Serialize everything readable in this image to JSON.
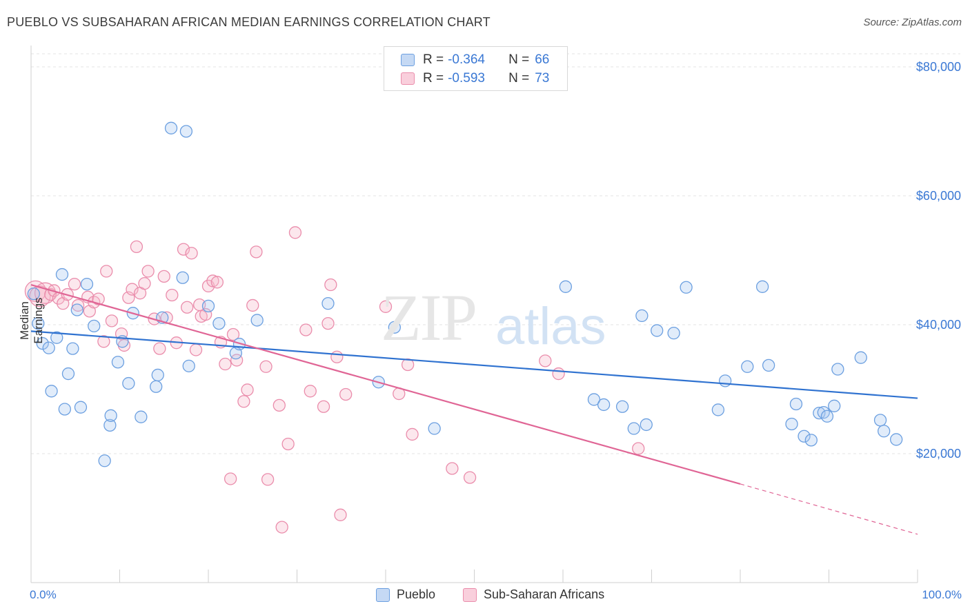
{
  "title": "PUEBLO VS SUBSAHARAN AFRICAN MEDIAN EARNINGS CORRELATION CHART",
  "source": "Source: ZipAtlas.com",
  "watermark": {
    "part1": "ZIP",
    "part2": "atlas"
  },
  "legend": {
    "rows": [
      {
        "r_label": "R =",
        "r_value": "-0.364",
        "n_label": "N =",
        "n_value": "66"
      },
      {
        "r_label": "R =",
        "r_value": "-0.593",
        "n_label": "N =",
        "n_value": "73"
      }
    ]
  },
  "bottom_legend": {
    "series1": "Pueblo",
    "series2": "Sub-Saharan Africans"
  },
  "colors": {
    "blue_fill": "#a9c8f0",
    "blue_stroke": "#6b9fe0",
    "blue_line": "#2f72d0",
    "pink_fill": "#f6b9cb",
    "pink_stroke": "#ea8cab",
    "pink_line": "#e06595",
    "accent_text": "#3a78d4",
    "grid": "#e3e3e3"
  },
  "chart_data": {
    "type": "scatter",
    "title": "PUEBLO VS SUBSAHARAN AFRICAN MEDIAN EARNINGS CORRELATION CHART",
    "xlabel": "",
    "ylabel": "Median Earnings",
    "xlim": [
      0,
      100
    ],
    "ylim": [
      0,
      82000
    ],
    "x_tick_labels": [
      "0.0%",
      "100.0%"
    ],
    "y_ticks": [
      20000,
      40000,
      60000,
      80000
    ],
    "y_tick_labels": [
      "$20,000",
      "$40,000",
      "$60,000",
      "$80,000"
    ],
    "grid": true,
    "legend_position": "top-center",
    "series": [
      {
        "name": "Pueblo",
        "color": "#6b9fe0",
        "r": -0.364,
        "n": 66,
        "trend": {
          "x": [
            0,
            100
          ],
          "y": [
            39000,
            28600
          ]
        },
        "points": [
          [
            0.3,
            44800
          ],
          [
            0.8,
            40200
          ],
          [
            1.3,
            37100
          ],
          [
            2.0,
            36400
          ],
          [
            2.3,
            29700
          ],
          [
            2.9,
            38000
          ],
          [
            3.5,
            47800
          ],
          [
            3.8,
            26900
          ],
          [
            4.2,
            32400
          ],
          [
            4.7,
            36300
          ],
          [
            5.2,
            42300
          ],
          [
            5.6,
            27200
          ],
          [
            6.3,
            46300
          ],
          [
            7.1,
            39800
          ],
          [
            8.3,
            18900
          ],
          [
            8.9,
            24400
          ],
          [
            9.0,
            25900
          ],
          [
            9.8,
            34200
          ],
          [
            10.3,
            37400
          ],
          [
            11.0,
            30900
          ],
          [
            11.5,
            41800
          ],
          [
            12.4,
            25700
          ],
          [
            14.1,
            30400
          ],
          [
            14.3,
            32200
          ],
          [
            14.8,
            41100
          ],
          [
            15.8,
            70500
          ],
          [
            17.1,
            47300
          ],
          [
            17.5,
            70000
          ],
          [
            17.8,
            33600
          ],
          [
            20.0,
            42900
          ],
          [
            21.2,
            40200
          ],
          [
            23.1,
            35600
          ],
          [
            23.5,
            37000
          ],
          [
            25.5,
            40700
          ],
          [
            33.5,
            43300
          ],
          [
            39.2,
            31100
          ],
          [
            41.0,
            39600
          ],
          [
            45.5,
            23900
          ],
          [
            60.3,
            45900
          ],
          [
            63.5,
            28400
          ],
          [
            64.6,
            27600
          ],
          [
            66.7,
            27300
          ],
          [
            68.0,
            23900
          ],
          [
            68.9,
            41400
          ],
          [
            69.4,
            24500
          ],
          [
            70.6,
            39100
          ],
          [
            72.5,
            38700
          ],
          [
            73.9,
            45800
          ],
          [
            77.5,
            26800
          ],
          [
            78.3,
            31300
          ],
          [
            80.8,
            33500
          ],
          [
            82.5,
            45900
          ],
          [
            83.2,
            33700
          ],
          [
            85.8,
            24600
          ],
          [
            86.3,
            27700
          ],
          [
            87.2,
            22700
          ],
          [
            88.0,
            22100
          ],
          [
            88.9,
            26300
          ],
          [
            89.4,
            26400
          ],
          [
            89.8,
            25800
          ],
          [
            90.6,
            27400
          ],
          [
            91.0,
            33100
          ],
          [
            93.6,
            34900
          ],
          [
            95.8,
            25200
          ],
          [
            96.2,
            23500
          ],
          [
            97.6,
            22200
          ]
        ]
      },
      {
        "name": "Sub-Saharan Africans",
        "color": "#ea8cab",
        "r": -0.593,
        "n": 73,
        "trend": {
          "x": [
            0,
            80
          ],
          "y": [
            46200,
            15300
          ]
        },
        "trend_dashed": {
          "x": [
            80,
            100
          ],
          "y": [
            15300,
            7500
          ]
        },
        "points": [
          [
            0.5,
            45200
          ],
          [
            1.0,
            44400
          ],
          [
            1.6,
            44900
          ],
          [
            2.2,
            44700
          ],
          [
            2.6,
            45300
          ],
          [
            3.1,
            44100
          ],
          [
            3.6,
            43300
          ],
          [
            4.1,
            44700
          ],
          [
            4.9,
            46300
          ],
          [
            5.3,
            43000
          ],
          [
            6.4,
            44300
          ],
          [
            6.6,
            42100
          ],
          [
            7.1,
            43500
          ],
          [
            7.6,
            44000
          ],
          [
            8.2,
            37400
          ],
          [
            8.5,
            48300
          ],
          [
            9.1,
            40600
          ],
          [
            10.2,
            38600
          ],
          [
            10.5,
            36800
          ],
          [
            11.0,
            44200
          ],
          [
            11.4,
            45500
          ],
          [
            11.9,
            52100
          ],
          [
            12.3,
            44900
          ],
          [
            12.8,
            46400
          ],
          [
            13.2,
            48300
          ],
          [
            13.9,
            40900
          ],
          [
            14.5,
            36300
          ],
          [
            15.0,
            47500
          ],
          [
            15.3,
            41100
          ],
          [
            15.9,
            44600
          ],
          [
            16.4,
            37200
          ],
          [
            17.2,
            51700
          ],
          [
            17.6,
            42700
          ],
          [
            18.1,
            51100
          ],
          [
            18.6,
            36100
          ],
          [
            19.2,
            41300
          ],
          [
            19.7,
            41600
          ],
          [
            20.0,
            46000
          ],
          [
            20.5,
            46800
          ],
          [
            21.0,
            46600
          ],
          [
            21.4,
            37300
          ],
          [
            21.9,
            33900
          ],
          [
            22.8,
            38500
          ],
          [
            23.2,
            34500
          ],
          [
            24.0,
            28100
          ],
          [
            24.4,
            29900
          ],
          [
            25.0,
            43000
          ],
          [
            25.4,
            51300
          ],
          [
            26.5,
            33500
          ],
          [
            28.0,
            27500
          ],
          [
            29.0,
            21500
          ],
          [
            29.8,
            54300
          ],
          [
            31.0,
            39200
          ],
          [
            31.5,
            29700
          ],
          [
            33.0,
            27300
          ],
          [
            33.5,
            40200
          ],
          [
            33.8,
            46200
          ],
          [
            34.5,
            35000
          ],
          [
            35.5,
            29200
          ],
          [
            40.0,
            42800
          ],
          [
            41.5,
            29300
          ],
          [
            42.5,
            33800
          ],
          [
            43.0,
            23000
          ],
          [
            47.5,
            17700
          ],
          [
            49.5,
            16300
          ],
          [
            58.0,
            34400
          ],
          [
            59.5,
            32400
          ],
          [
            68.5,
            20800
          ],
          [
            22.5,
            16100
          ],
          [
            26.7,
            16000
          ],
          [
            28.3,
            8600
          ],
          [
            34.9,
            10500
          ],
          [
            19.0,
            43100
          ]
        ]
      }
    ]
  }
}
